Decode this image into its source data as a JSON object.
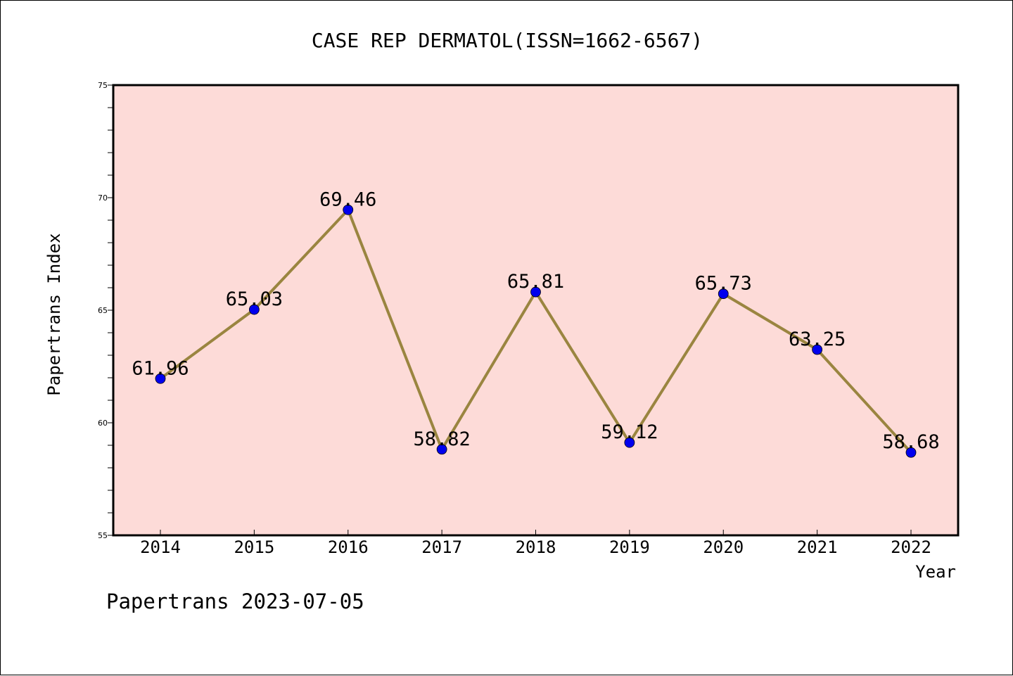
{
  "chart_data": {
    "type": "line",
    "title": "CASE REP DERMATOL(ISSN=1662-6567)",
    "xlabel": "Year",
    "ylabel": "Papertrans Index",
    "x": [
      "2014",
      "2015",
      "2016",
      "2017",
      "2018",
      "2019",
      "2020",
      "2021",
      "2022"
    ],
    "series": [
      {
        "values": [
          61.96,
          65.03,
          69.46,
          58.82,
          65.81,
          59.12,
          65.73,
          63.25,
          58.68
        ],
        "labels": [
          "61.96",
          "65.03",
          "69.46",
          "58.82",
          "65.81",
          "59.12",
          "65.73",
          "63.25",
          "58.68"
        ]
      }
    ],
    "ylim": [
      55,
      75
    ],
    "yticks": [
      55,
      60,
      65,
      70,
      75
    ],
    "grid": false,
    "colors": {
      "plot_background": "#fddbd8",
      "line": "#9a8540",
      "marker": "#0000ee"
    }
  },
  "footer": {
    "watermark": "Papertrans 2023-07-05"
  }
}
